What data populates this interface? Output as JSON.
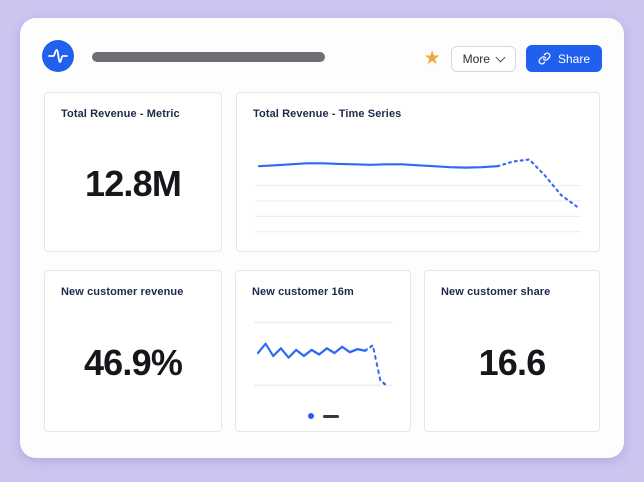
{
  "colors": {
    "outer_background": "#cbc5f0",
    "accent_blue": "#2160ef",
    "star_orange": "#f2a83e"
  },
  "icons": {
    "star_glyph": "★"
  },
  "header": {
    "more_label": "More",
    "share_label": "Share"
  },
  "cards": {
    "total_metric": {
      "title": "Total Revenue - Metric",
      "value": "12.8M"
    },
    "total_series": {
      "title": "Total Revenue - Time Series"
    },
    "new_revenue": {
      "title": "New customer revenue",
      "value": "46.9%"
    },
    "new_16m": {
      "title": "New customer 16m",
      "pager": {
        "pages": 2,
        "active_page": 1
      }
    },
    "new_share": {
      "title": "New customer share",
      "value": "16.6"
    }
  },
  "chart_data": [
    {
      "type": "line",
      "title": "Total Revenue - Time Series",
      "color": "#2f6bf0",
      "grid_color": "#ececf1",
      "ylim": [
        0,
        100
      ],
      "gridlines_y": [
        50,
        34,
        18,
        2
      ],
      "solid_values": [
        70,
        71,
        72,
        73,
        73,
        72.5,
        72,
        71.5,
        72,
        72,
        71,
        70,
        69,
        68.5,
        69,
        70
      ],
      "dotted_values": [
        70,
        75,
        77,
        60,
        40,
        28
      ],
      "dotted_style": "projection"
    },
    {
      "type": "line",
      "title": "New customer 16m",
      "color": "#2f6bf0",
      "grid_color": "#ececf1",
      "ylim": [
        0,
        100
      ],
      "gridlines_y": [
        92,
        10
      ],
      "solid_values": [
        52,
        64,
        48,
        58,
        46,
        56,
        48,
        56,
        50,
        58,
        52,
        60,
        53,
        57,
        55
      ],
      "dotted_values": [
        55,
        62,
        16,
        8
      ],
      "dotted_style": "projection"
    }
  ]
}
